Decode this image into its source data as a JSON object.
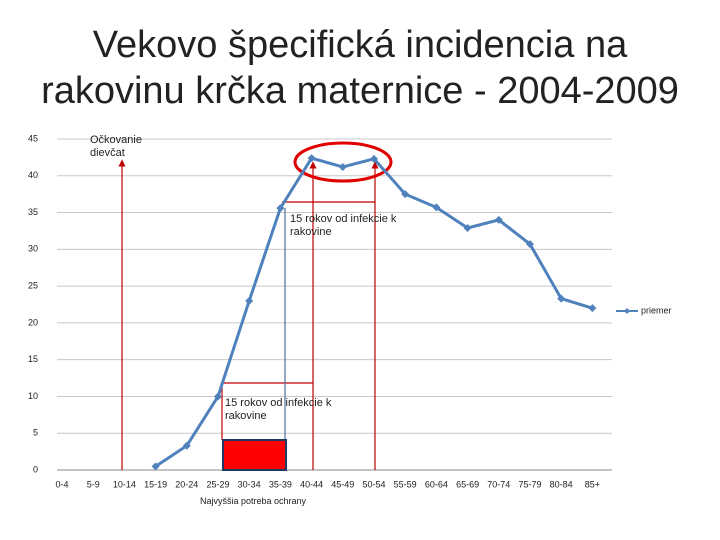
{
  "chart_data": {
    "type": "line",
    "title": "Vekovo špecifická incidencia na rakovinu krčka maternice - 2004-2009",
    "categories": [
      "0-4",
      "5-9",
      "10-14",
      "15-19",
      "20-24",
      "25-29",
      "30-34",
      "35-39",
      "40-44",
      "45-49",
      "50-54",
      "55-59",
      "60-64",
      "65-69",
      "70-74",
      "75-79",
      "80-84",
      "85+"
    ],
    "series": [
      {
        "name": "priemer",
        "color": "#4f81bd",
        "values": [
          null,
          null,
          null,
          0.5,
          3.3,
          10,
          23,
          35.6,
          42.4,
          41.2,
          42.3,
          37.5,
          35.7,
          32.9,
          34,
          30.7,
          23.3,
          22
        ]
      }
    ],
    "ylim": [
      0,
      45
    ],
    "yticks": [
      0,
      5,
      10,
      15,
      20,
      25,
      30,
      35,
      40,
      45
    ],
    "grid": true,
    "legend": "right",
    "annotations": [
      "Očkovanie dievčat",
      "15 rokov od infekcie k rakovine",
      "15 rokov od infekcie k rakovine",
      "Najvyššia potreba ochrany"
    ]
  }
}
